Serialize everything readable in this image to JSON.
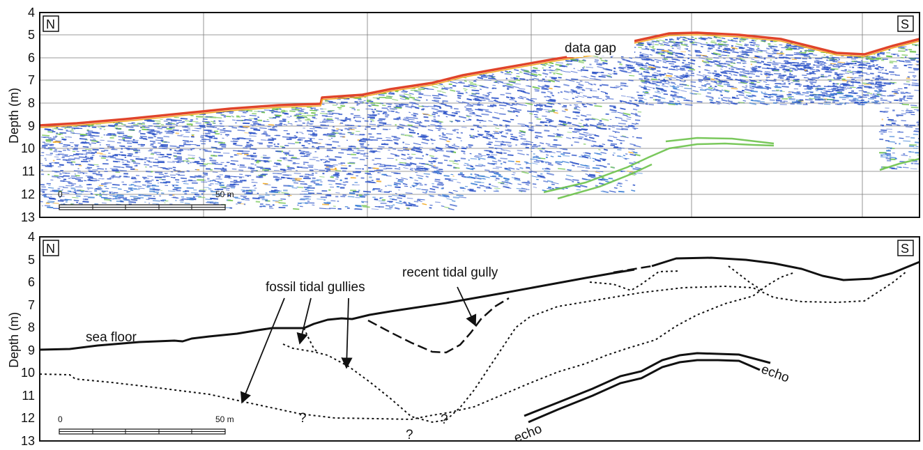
{
  "panels": {
    "top": {
      "left_label": "N",
      "right_label": "S",
      "ylabel": "Depth (m)",
      "yticks": [
        "4",
        "5",
        "6",
        "7",
        "8",
        "9",
        "10",
        "11",
        "12",
        "13"
      ],
      "scale_start": "0",
      "scale_end": "50 m",
      "annotations": {
        "data_gap": "data gap"
      }
    },
    "bottom": {
      "left_label": "N",
      "right_label": "S",
      "ylabel": "Depth (m)",
      "yticks": [
        "4",
        "5",
        "6",
        "7",
        "8",
        "9",
        "10",
        "11",
        "12",
        "13"
      ],
      "scale_start": "0",
      "scale_end": "50 m",
      "annotations": {
        "sea_floor": "sea floor",
        "fossil_tidal_gullies": "fossil tidal gullies",
        "recent_tidal_gully": "recent tidal gully",
        "echo_upper": "echo",
        "echo_lower": "echo",
        "question": "?"
      }
    }
  },
  "colors": {
    "sea_floor_reflection": "#e0442a",
    "strong_reflector": "#f2a81d",
    "medium_reflector": "#6cc24a",
    "weak_reflector": "#2f55c8",
    "noise": "#3b7fd6"
  }
}
